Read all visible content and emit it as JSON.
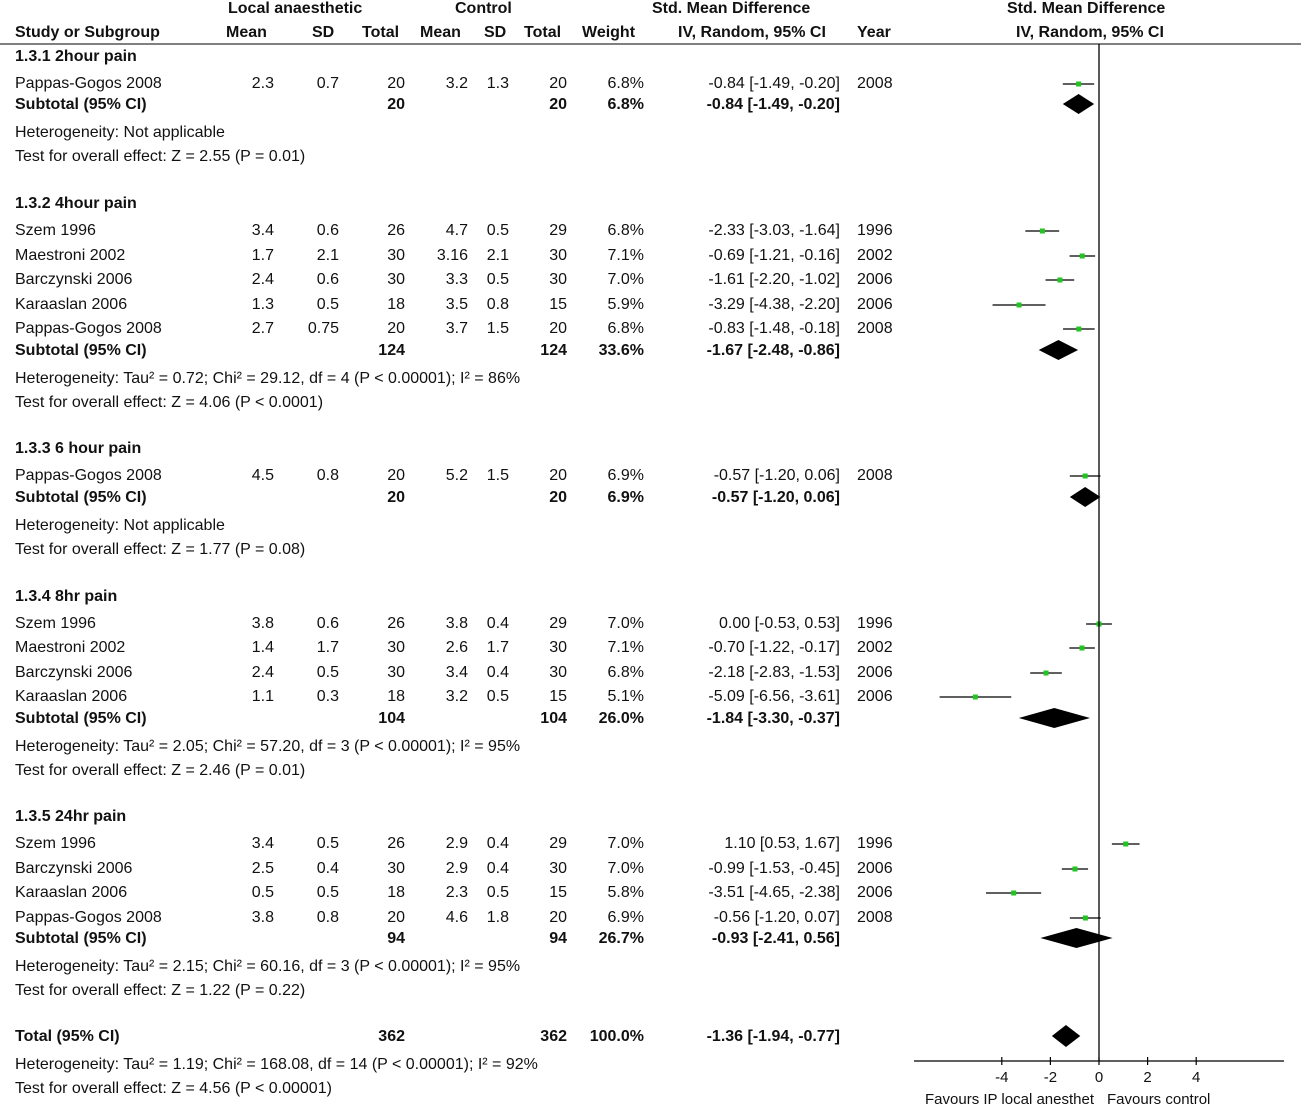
{
  "header": {
    "group_local": "Local anaesthetic",
    "group_control": "Control",
    "group_smd": "Std. Mean Difference",
    "plot_title": "Std. Mean Difference",
    "col_study": "Study or Subgroup",
    "col_mean": "Mean",
    "col_sd": "SD",
    "col_total": "Total",
    "col_weight": "Weight",
    "col_ci": "IV, Random, 95% CI",
    "col_year": "Year",
    "plot_subtitle": "IV, Random, 95% CI"
  },
  "chart_data": {
    "type": "forest",
    "x_ticks": [
      "-4",
      "-2",
      "0",
      "2",
      "4"
    ],
    "xlim": [
      -6.5,
      7.5
    ],
    "favours_left": "Favours IP local anesthet",
    "favours_right": "Favours control",
    "subgroups": [
      {
        "title": "1.3.1 2hour pain",
        "studies": [
          {
            "name": "Pappas-Gogos 2008",
            "le_mean": "2.3",
            "le_sd": "0.7",
            "le_total": "20",
            "c_mean": "3.2",
            "c_sd": "1.3",
            "c_total": "20",
            "weight": "6.8%",
            "ci_text": "-0.84 [-1.49, -0.20]",
            "year": "2008",
            "est": -0.84,
            "lo": -1.49,
            "hi": -0.2
          }
        ],
        "subtotal": {
          "label": "Subtotal (95% CI)",
          "le_total": "20",
          "c_total": "20",
          "weight": "6.8%",
          "ci_text": "-0.84 [-1.49, -0.20]",
          "est": -0.84,
          "lo": -1.49,
          "hi": -0.2
        },
        "heterogeneity": "Heterogeneity: Not applicable",
        "overall": "Test for overall effect: Z = 2.55 (P = 0.01)"
      },
      {
        "title": "1.3.2 4hour pain",
        "studies": [
          {
            "name": "Szem 1996",
            "le_mean": "3.4",
            "le_sd": "0.6",
            "le_total": "26",
            "c_mean": "4.7",
            "c_sd": "0.5",
            "c_total": "29",
            "weight": "6.8%",
            "ci_text": "-2.33 [-3.03, -1.64]",
            "year": "1996",
            "est": -2.33,
            "lo": -3.03,
            "hi": -1.64
          },
          {
            "name": "Maestroni 2002",
            "le_mean": "1.7",
            "le_sd": "2.1",
            "le_total": "30",
            "c_mean": "3.16",
            "c_sd": "2.1",
            "c_total": "30",
            "weight": "7.1%",
            "ci_text": "-0.69 [-1.21, -0.16]",
            "year": "2002",
            "est": -0.69,
            "lo": -1.21,
            "hi": -0.16
          },
          {
            "name": "Barczynski 2006",
            "le_mean": "2.4",
            "le_sd": "0.6",
            "le_total": "30",
            "c_mean": "3.3",
            "c_sd": "0.5",
            "c_total": "30",
            "weight": "7.0%",
            "ci_text": "-1.61 [-2.20, -1.02]",
            "year": "2006",
            "est": -1.61,
            "lo": -2.2,
            "hi": -1.02
          },
          {
            "name": "Karaaslan 2006",
            "le_mean": "1.3",
            "le_sd": "0.5",
            "le_total": "18",
            "c_mean": "3.5",
            "c_sd": "0.8",
            "c_total": "15",
            "weight": "5.9%",
            "ci_text": "-3.29 [-4.38, -2.20]",
            "year": "2006",
            "est": -3.29,
            "lo": -4.38,
            "hi": -2.2
          },
          {
            "name": "Pappas-Gogos 2008",
            "le_mean": "2.7",
            "le_sd": "0.75",
            "le_total": "20",
            "c_mean": "3.7",
            "c_sd": "1.5",
            "c_total": "20",
            "weight": "6.8%",
            "ci_text": "-0.83 [-1.48, -0.18]",
            "year": "2008",
            "est": -0.83,
            "lo": -1.48,
            "hi": -0.18
          }
        ],
        "subtotal": {
          "label": "Subtotal (95% CI)",
          "le_total": "124",
          "c_total": "124",
          "weight": "33.6%",
          "ci_text": "-1.67 [-2.48, -0.86]",
          "est": -1.67,
          "lo": -2.48,
          "hi": -0.86
        },
        "heterogeneity": "Heterogeneity: Tau² = 0.72; Chi² = 29.12, df = 4 (P < 0.00001); I² = 86%",
        "overall": "Test for overall effect: Z = 4.06 (P < 0.0001)"
      },
      {
        "title": "1.3.3 6 hour pain",
        "studies": [
          {
            "name": "Pappas-Gogos 2008",
            "le_mean": "4.5",
            "le_sd": "0.8",
            "le_total": "20",
            "c_mean": "5.2",
            "c_sd": "1.5",
            "c_total": "20",
            "weight": "6.9%",
            "ci_text": "-0.57 [-1.20, 0.06]",
            "year": "2008",
            "est": -0.57,
            "lo": -1.2,
            "hi": 0.06
          }
        ],
        "subtotal": {
          "label": "Subtotal (95% CI)",
          "le_total": "20",
          "c_total": "20",
          "weight": "6.9%",
          "ci_text": "-0.57 [-1.20, 0.06]",
          "est": -0.57,
          "lo": -1.2,
          "hi": 0.06
        },
        "heterogeneity": "Heterogeneity: Not applicable",
        "overall": "Test for overall effect: Z = 1.77 (P = 0.08)"
      },
      {
        "title": "1.3.4 8hr pain",
        "studies": [
          {
            "name": "Szem 1996",
            "le_mean": "3.8",
            "le_sd": "0.6",
            "le_total": "26",
            "c_mean": "3.8",
            "c_sd": "0.4",
            "c_total": "29",
            "weight": "7.0%",
            "ci_text": "0.00 [-0.53, 0.53]",
            "year": "1996",
            "est": 0.0,
            "lo": -0.53,
            "hi": 0.53
          },
          {
            "name": "Maestroni 2002",
            "le_mean": "1.4",
            "le_sd": "1.7",
            "le_total": "30",
            "c_mean": "2.6",
            "c_sd": "1.7",
            "c_total": "30",
            "weight": "7.1%",
            "ci_text": "-0.70 [-1.22, -0.17]",
            "year": "2002",
            "est": -0.7,
            "lo": -1.22,
            "hi": -0.17
          },
          {
            "name": "Barczynski 2006",
            "le_mean": "2.4",
            "le_sd": "0.5",
            "le_total": "30",
            "c_mean": "3.4",
            "c_sd": "0.4",
            "c_total": "30",
            "weight": "6.8%",
            "ci_text": "-2.18 [-2.83, -1.53]",
            "year": "2006",
            "est": -2.18,
            "lo": -2.83,
            "hi": -1.53
          },
          {
            "name": "Karaaslan 2006",
            "le_mean": "1.1",
            "le_sd": "0.3",
            "le_total": "18",
            "c_mean": "3.2",
            "c_sd": "0.5",
            "c_total": "15",
            "weight": "5.1%",
            "ci_text": "-5.09 [-6.56, -3.61]",
            "year": "2006",
            "est": -5.09,
            "lo": -6.56,
            "hi": -3.61
          }
        ],
        "subtotal": {
          "label": "Subtotal (95% CI)",
          "le_total": "104",
          "c_total": "104",
          "weight": "26.0%",
          "ci_text": "-1.84 [-3.30, -0.37]",
          "est": -1.84,
          "lo": -3.3,
          "hi": -0.37
        },
        "heterogeneity": "Heterogeneity: Tau² = 2.05; Chi² = 57.20, df = 3 (P < 0.00001); I² = 95%",
        "overall": "Test for overall effect: Z = 2.46 (P = 0.01)"
      },
      {
        "title": "1.3.5 24hr pain",
        "studies": [
          {
            "name": "Szem 1996",
            "le_mean": "3.4",
            "le_sd": "0.5",
            "le_total": "26",
            "c_mean": "2.9",
            "c_sd": "0.4",
            "c_total": "29",
            "weight": "7.0%",
            "ci_text": "1.10 [0.53, 1.67]",
            "year": "1996",
            "est": 1.1,
            "lo": 0.53,
            "hi": 1.67
          },
          {
            "name": "Barczynski 2006",
            "le_mean": "2.5",
            "le_sd": "0.4",
            "le_total": "30",
            "c_mean": "2.9",
            "c_sd": "0.4",
            "c_total": "30",
            "weight": "7.0%",
            "ci_text": "-0.99 [-1.53, -0.45]",
            "year": "2006",
            "est": -0.99,
            "lo": -1.53,
            "hi": -0.45
          },
          {
            "name": "Karaaslan 2006",
            "le_mean": "0.5",
            "le_sd": "0.5",
            "le_total": "18",
            "c_mean": "2.3",
            "c_sd": "0.5",
            "c_total": "15",
            "weight": "5.8%",
            "ci_text": "-3.51 [-4.65, -2.38]",
            "year": "2006",
            "est": -3.51,
            "lo": -4.65,
            "hi": -2.38
          },
          {
            "name": "Pappas-Gogos 2008",
            "le_mean": "3.8",
            "le_sd": "0.8",
            "le_total": "20",
            "c_mean": "4.6",
            "c_sd": "1.8",
            "c_total": "20",
            "weight": "6.9%",
            "ci_text": "-0.56 [-1.20, 0.07]",
            "year": "2008",
            "est": -0.56,
            "lo": -1.2,
            "hi": 0.07
          }
        ],
        "subtotal": {
          "label": "Subtotal (95% CI)",
          "le_total": "94",
          "c_total": "94",
          "weight": "26.7%",
          "ci_text": "-0.93 [-2.41, 0.56]",
          "est": -0.93,
          "lo": -2.41,
          "hi": 0.56
        },
        "heterogeneity": "Heterogeneity: Tau² = 2.15; Chi² = 60.16, df = 3 (P < 0.00001); I² = 95%",
        "overall": "Test for overall effect: Z = 1.22 (P = 0.22)"
      }
    ],
    "total": {
      "label": "Total (95% CI)",
      "le_total": "362",
      "c_total": "362",
      "weight": "100.0%",
      "ci_text": "-1.36 [-1.94, -0.77]",
      "est": -1.36,
      "lo": -1.94,
      "hi": -0.77
    },
    "total_heterogeneity": "Heterogeneity: Tau² = 1.19; Chi² = 168.08, df = 14 (P < 0.00001); I² = 92%",
    "total_overall": "Test for overall effect: Z = 4.56 (P < 0.00001)",
    "colors": {
      "point": "#22c422",
      "diamond": "#000000",
      "line": "#000000"
    }
  }
}
